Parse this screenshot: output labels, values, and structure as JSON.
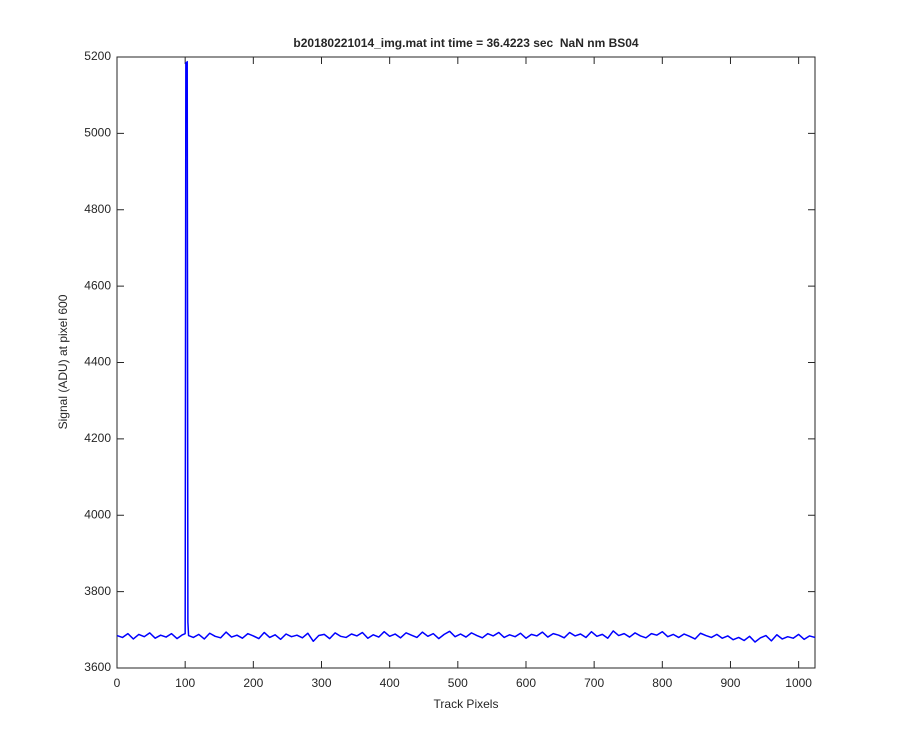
{
  "chart_data": {
    "type": "line",
    "title": "b20180221014_img.mat int time = 36.4223 sec  NaN nm BS04",
    "xlabel": "Track Pixels",
    "ylabel": "Signal (ADU) at pixel 600",
    "xlim": [
      0,
      1024
    ],
    "ylim": [
      3600,
      5200
    ],
    "xticks": [
      0,
      100,
      200,
      300,
      400,
      500,
      600,
      700,
      800,
      900,
      1000
    ],
    "yticks": [
      3600,
      3800,
      4000,
      4200,
      4400,
      4600,
      4800,
      5000,
      5200
    ],
    "grid": false,
    "x": [
      0,
      8,
      16,
      24,
      32,
      40,
      48,
      56,
      64,
      72,
      80,
      88,
      96,
      100,
      101,
      102,
      103,
      104,
      105,
      112,
      120,
      128,
      136,
      144,
      152,
      160,
      168,
      176,
      184,
      192,
      200,
      208,
      216,
      224,
      232,
      240,
      248,
      256,
      264,
      272,
      280,
      288,
      296,
      304,
      312,
      320,
      328,
      336,
      344,
      352,
      360,
      368,
      376,
      384,
      392,
      400,
      408,
      416,
      424,
      432,
      440,
      448,
      456,
      464,
      472,
      480,
      488,
      496,
      504,
      512,
      520,
      528,
      536,
      544,
      552,
      560,
      568,
      576,
      584,
      592,
      600,
      608,
      616,
      624,
      632,
      640,
      648,
      656,
      664,
      672,
      680,
      688,
      696,
      704,
      712,
      720,
      728,
      736,
      744,
      752,
      760,
      768,
      776,
      784,
      792,
      800,
      808,
      816,
      824,
      832,
      840,
      848,
      856,
      864,
      872,
      880,
      888,
      896,
      904,
      912,
      920,
      928,
      936,
      944,
      952,
      960,
      968,
      976,
      984,
      992,
      1000,
      1008,
      1016,
      1024
    ],
    "series": [
      {
        "color": "#0000ff",
        "values": [
          3685,
          3680,
          3690,
          3676,
          3688,
          3682,
          3692,
          3678,
          3686,
          3681,
          3690,
          3677,
          3687,
          3690,
          5185,
          5175,
          5188,
          3720,
          3685,
          3680,
          3688,
          3676,
          3691,
          3683,
          3679,
          3694,
          3681,
          3686,
          3678,
          3690,
          3684,
          3677,
          3693,
          3680,
          3687,
          3675,
          3689,
          3682,
          3686,
          3679,
          3691,
          3670,
          3685,
          3688,
          3677,
          3692,
          3683,
          3680,
          3689,
          3684,
          3693,
          3678,
          3687,
          3681,
          3695,
          3683,
          3689,
          3679,
          3692,
          3686,
          3680,
          3694,
          3683,
          3690,
          3677,
          3688,
          3696,
          3682,
          3689,
          3681,
          3692,
          3685,
          3679,
          3690,
          3684,
          3693,
          3680,
          3687,
          3682,
          3691,
          3678,
          3688,
          3684,
          3694,
          3681,
          3690,
          3686,
          3679,
          3693,
          3684,
          3689,
          3680,
          3695,
          3683,
          3688,
          3678,
          3697,
          3685,
          3690,
          3681,
          3692,
          3684,
          3679,
          3690,
          3686,
          3695,
          3682,
          3688,
          3680,
          3689,
          3683,
          3676,
          3691,
          3685,
          3680,
          3688,
          3678,
          3684,
          3674,
          3680,
          3672,
          3683,
          3668,
          3679,
          3685,
          3671,
          3687,
          3676,
          3682,
          3678,
          3688,
          3675,
          3684,
          3680
        ]
      }
    ]
  }
}
